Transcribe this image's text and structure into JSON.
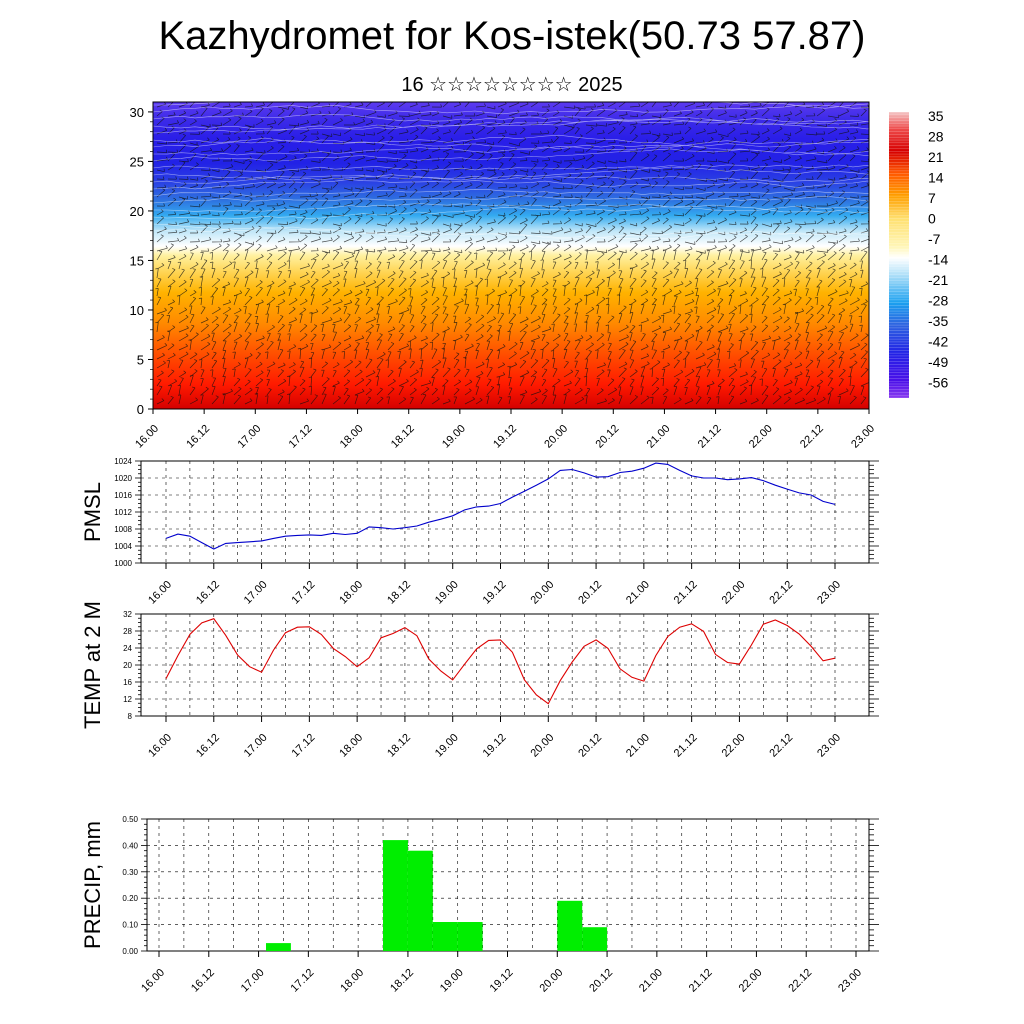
{
  "header": {
    "title": "Kazhydromet for Kos-istek(50.73 57.87)",
    "subtitle": "16 ☆☆☆☆☆☆☆☆ 2025"
  },
  "time_labels": [
    "16.00",
    "16.12",
    "17.00",
    "17.12",
    "18.00",
    "18.12",
    "19.00",
    "19.12",
    "20.00",
    "20.12",
    "21.00",
    "21.12",
    "22.00",
    "22.12",
    "23.00"
  ],
  "chart_data": [
    {
      "type": "heatmap",
      "description_axis": "height",
      "ylim": [
        0,
        31
      ],
      "y_ticks": [
        0,
        5,
        10,
        15,
        20,
        25,
        30
      ],
      "colorbar": {
        "labels": [
          "35",
          "28",
          "21",
          "14",
          "7",
          "0",
          "-7",
          "-14",
          "-21",
          "-28",
          "-35",
          "-42",
          "-49",
          "-56"
        ],
        "stops": [
          {
            "v": 38,
            "c": "#f4c6c6"
          },
          {
            "v": 32,
            "c": "#ee4a4a"
          },
          {
            "v": 24,
            "c": "#d60000"
          },
          {
            "v": 16,
            "c": "#ff5a00"
          },
          {
            "v": 8,
            "c": "#ffa000"
          },
          {
            "v": 0,
            "c": "#ffe070"
          },
          {
            "v": -10,
            "c": "#fff6b8"
          },
          {
            "v": -14,
            "c": "#ffffff"
          },
          {
            "v": -20,
            "c": "#b0e0f8"
          },
          {
            "v": -30,
            "c": "#1aa0f0"
          },
          {
            "v": -38,
            "c": "#2e63e0"
          },
          {
            "v": -48,
            "c": "#2222e6"
          },
          {
            "v": -58,
            "c": "#4b10e8"
          },
          {
            "v": -64,
            "c": "#8a3cf0"
          }
        ]
      }
    },
    {
      "type": "line",
      "ylabel": "PMSL",
      "ylim": [
        1000,
        1024
      ],
      "y_ticks": [
        1000,
        1004,
        1008,
        1012,
        1016,
        1020,
        1024
      ],
      "color": "#0000cc",
      "values": [
        1005.8,
        1006.8,
        1006.3,
        1004.8,
        1003.3,
        1004.6,
        1004.8,
        1005.0,
        1005.2,
        1005.8,
        1006.3,
        1006.5,
        1006.6,
        1006.5,
        1007.0,
        1006.7,
        1007.0,
        1008.5,
        1008.3,
        1008.0,
        1008.3,
        1008.7,
        1009.6,
        1010.3,
        1011.1,
        1012.5,
        1013.2,
        1013.4,
        1014.0,
        1015.5,
        1016.9,
        1018.3,
        1019.8,
        1021.8,
        1022.0,
        1021.2,
        1020.2,
        1020.3,
        1021.3,
        1021.6,
        1022.3,
        1023.5,
        1023.2,
        1021.8,
        1020.5,
        1020.0,
        1020.0,
        1019.6,
        1019.8,
        1020.1,
        1019.4,
        1018.3,
        1017.4,
        1016.5,
        1016.0,
        1014.5,
        1013.8
      ]
    },
    {
      "type": "line",
      "ylabel": "TEMP at 2 M",
      "ylim": [
        8,
        32
      ],
      "y_ticks": [
        8,
        12,
        16,
        20,
        24,
        28,
        32
      ],
      "color": "#dd0000",
      "values": [
        16.8,
        22.2,
        27.2,
        29.9,
        30.9,
        27.0,
        22.3,
        19.6,
        18.3,
        23.5,
        27.6,
        28.9,
        29.0,
        27.2,
        23.9,
        22.0,
        19.6,
        21.7,
        26.4,
        27.4,
        28.8,
        26.9,
        21.4,
        18.6,
        16.5,
        20.2,
        23.8,
        25.8,
        25.9,
        23.0,
        16.5,
        13.0,
        10.9,
        16.3,
        20.7,
        24.4,
        25.9,
        23.9,
        19.1,
        17.1,
        16.2,
        22.2,
        26.7,
        28.9,
        29.7,
        27.9,
        22.5,
        20.6,
        20.2,
        24.7,
        29.6,
        30.6,
        29.3,
        27.3,
        24.4,
        21.0,
        21.6
      ]
    },
    {
      "type": "bar",
      "ylabel": "PRECIP, mm",
      "ylim": [
        0,
        0.5
      ],
      "y_ticks": [
        "0.00",
        "0.10",
        "0.20",
        "0.30",
        "0.40",
        "0.50"
      ],
      "color": "#00ee00",
      "bars": [
        {
          "x": 4.8,
          "value": 0.03
        },
        {
          "x": 9.5,
          "value": 0.42
        },
        {
          "x": 10.5,
          "value": 0.38
        },
        {
          "x": 11.5,
          "value": 0.11
        },
        {
          "x": 12.5,
          "value": 0.11
        },
        {
          "x": 16.5,
          "value": 0.19
        },
        {
          "x": 17.5,
          "value": 0.09
        }
      ]
    }
  ]
}
